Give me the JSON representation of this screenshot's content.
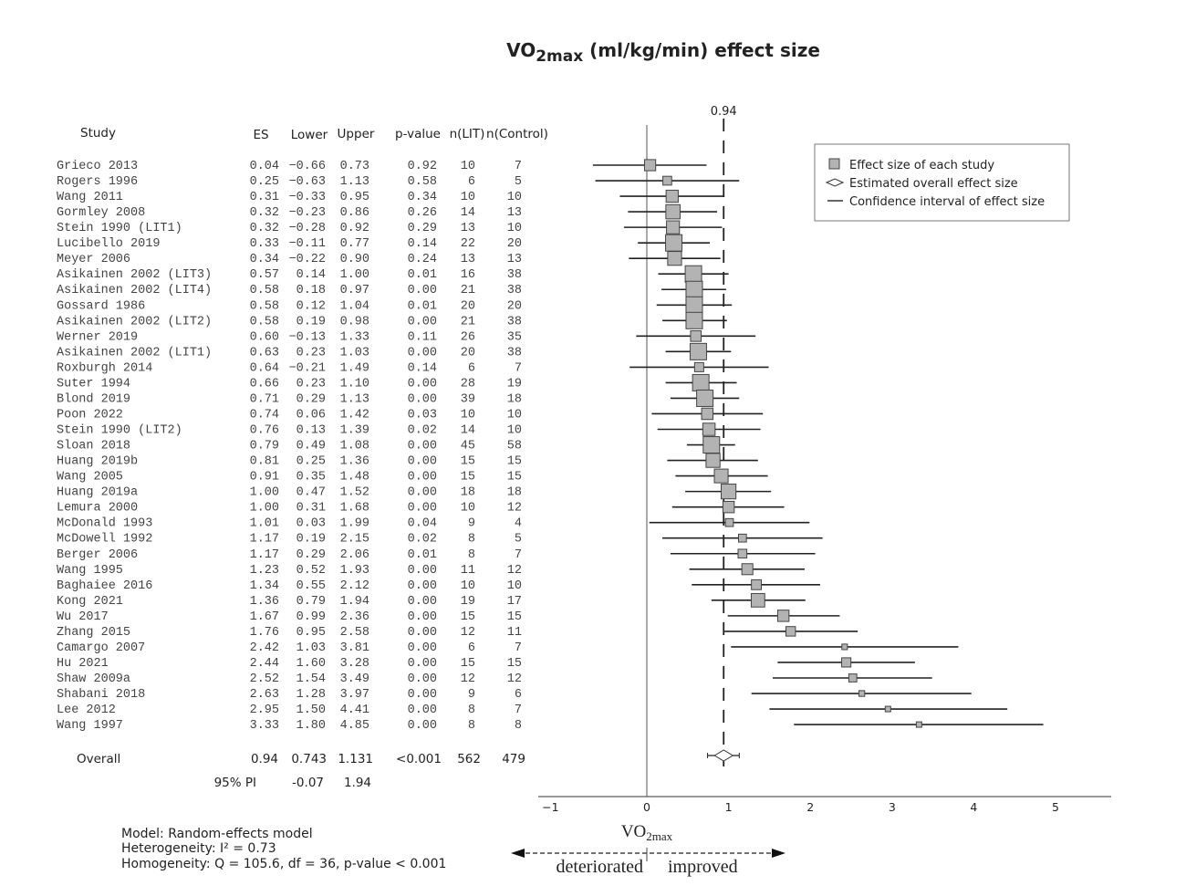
{
  "title": {
    "main": "VO",
    "sub": "2max",
    "rest": " (ml/kg/min) effect size"
  },
  "headers": {
    "study": "Study",
    "es": "ES",
    "lower": "Lower",
    "upper": "Upper",
    "p": "p-value",
    "n_lit": "n(LIT)",
    "n_control": "n(Control)"
  },
  "legend": {
    "square": "Effect size of each study",
    "diamond": "Estimated overall effect size",
    "line": "Confidence interval of effect size"
  },
  "footnote": {
    "model": "Model: Random-effects model",
    "heterogeneity": "Heterogeneity: I² = 0.73",
    "homogeneity": "Homogeneity: Q = 105.6, df = 36, p-value < 0.001"
  },
  "direction": {
    "label_main": "VO",
    "label_sub": "2max",
    "left": "deteriorated",
    "right": "improved"
  },
  "colors": {
    "square_fill": "#b3b3b3",
    "line": "#222222"
  },
  "chart_data": {
    "type": "forest",
    "xlim": [
      -1,
      5.7
    ],
    "xticks": [
      -1,
      0,
      1,
      2,
      3,
      4,
      5
    ],
    "reference_line": 0,
    "overall_line": 0.94,
    "overall_line_label": "0.94",
    "legend_position": "top-right",
    "studies": [
      {
        "name": "Grieco 2013",
        "es": 0.04,
        "lower": -0.66,
        "upper": 0.73,
        "p": "0.92",
        "n_lit": 10,
        "n_control": 7
      },
      {
        "name": "Rogers 1996",
        "es": 0.25,
        "lower": -0.63,
        "upper": 1.13,
        "p": "0.58",
        "n_lit": 6,
        "n_control": 5
      },
      {
        "name": "Wang 2011",
        "es": 0.31,
        "lower": -0.33,
        "upper": 0.95,
        "p": "0.34",
        "n_lit": 10,
        "n_control": 10
      },
      {
        "name": "Gormley 2008",
        "es": 0.32,
        "lower": -0.23,
        "upper": 0.86,
        "p": "0.26",
        "n_lit": 14,
        "n_control": 13
      },
      {
        "name": "Stein 1990 (LIT1)",
        "es": 0.32,
        "lower": -0.28,
        "upper": 0.92,
        "p": "0.29",
        "n_lit": 13,
        "n_control": 10
      },
      {
        "name": "Lucibello 2019",
        "es": 0.33,
        "lower": -0.11,
        "upper": 0.77,
        "p": "0.14",
        "n_lit": 22,
        "n_control": 20
      },
      {
        "name": "Meyer 2006",
        "es": 0.34,
        "lower": -0.22,
        "upper": 0.9,
        "p": "0.24",
        "n_lit": 13,
        "n_control": 13
      },
      {
        "name": "Asikainen 2002 (LIT3)",
        "es": 0.57,
        "lower": 0.14,
        "upper": 1.0,
        "p": "0.01",
        "n_lit": 16,
        "n_control": 38
      },
      {
        "name": "Asikainen 2002 (LIT4)",
        "es": 0.58,
        "lower": 0.18,
        "upper": 0.97,
        "p": "0.00",
        "n_lit": 21,
        "n_control": 38
      },
      {
        "name": "Gossard 1986",
        "es": 0.58,
        "lower": 0.12,
        "upper": 1.04,
        "p": "0.01",
        "n_lit": 20,
        "n_control": 20
      },
      {
        "name": "Asikainen 2002 (LIT2)",
        "es": 0.58,
        "lower": 0.19,
        "upper": 0.98,
        "p": "0.00",
        "n_lit": 21,
        "n_control": 38
      },
      {
        "name": "Werner 2019",
        "es": 0.6,
        "lower": -0.13,
        "upper": 1.33,
        "p": "0.11",
        "n_lit": 26,
        "n_control": 35
      },
      {
        "name": "Asikainen 2002 (LIT1)",
        "es": 0.63,
        "lower": 0.23,
        "upper": 1.03,
        "p": "0.00",
        "n_lit": 20,
        "n_control": 38
      },
      {
        "name": "Roxburgh 2014",
        "es": 0.64,
        "lower": -0.21,
        "upper": 1.49,
        "p": "0.14",
        "n_lit": 6,
        "n_control": 7
      },
      {
        "name": "Suter 1994",
        "es": 0.66,
        "lower": 0.23,
        "upper": 1.1,
        "p": "0.00",
        "n_lit": 28,
        "n_control": 19
      },
      {
        "name": "Blond 2019",
        "es": 0.71,
        "lower": 0.29,
        "upper": 1.13,
        "p": "0.00",
        "n_lit": 39,
        "n_control": 18
      },
      {
        "name": "Poon 2022",
        "es": 0.74,
        "lower": 0.06,
        "upper": 1.42,
        "p": "0.03",
        "n_lit": 10,
        "n_control": 10
      },
      {
        "name": "Stein 1990 (LIT2)",
        "es": 0.76,
        "lower": 0.13,
        "upper": 1.39,
        "p": "0.02",
        "n_lit": 14,
        "n_control": 10
      },
      {
        "name": "Sloan 2018",
        "es": 0.79,
        "lower": 0.49,
        "upper": 1.08,
        "p": "0.00",
        "n_lit": 45,
        "n_control": 58
      },
      {
        "name": "Huang 2019b",
        "es": 0.81,
        "lower": 0.25,
        "upper": 1.36,
        "p": "0.00",
        "n_lit": 15,
        "n_control": 15
      },
      {
        "name": "Wang 2005",
        "es": 0.91,
        "lower": 0.35,
        "upper": 1.48,
        "p": "0.00",
        "n_lit": 15,
        "n_control": 15
      },
      {
        "name": "Huang 2019a",
        "es": 1.0,
        "lower": 0.47,
        "upper": 1.52,
        "p": "0.00",
        "n_lit": 18,
        "n_control": 18
      },
      {
        "name": "Lemura 2000",
        "es": 1.0,
        "lower": 0.31,
        "upper": 1.68,
        "p": "0.00",
        "n_lit": 10,
        "n_control": 12
      },
      {
        "name": "McDonald 1993",
        "es": 1.01,
        "lower": 0.03,
        "upper": 1.99,
        "p": "0.04",
        "n_lit": 9,
        "n_control": 4
      },
      {
        "name": "McDowell 1992",
        "es": 1.17,
        "lower": 0.19,
        "upper": 2.15,
        "p": "0.02",
        "n_lit": 8,
        "n_control": 5
      },
      {
        "name": "Berger 2006",
        "es": 1.17,
        "lower": 0.29,
        "upper": 2.06,
        "p": "0.01",
        "n_lit": 8,
        "n_control": 7
      },
      {
        "name": "Wang 1995",
        "es": 1.23,
        "lower": 0.52,
        "upper": 1.93,
        "p": "0.00",
        "n_lit": 11,
        "n_control": 12
      },
      {
        "name": "Baghaiee 2016",
        "es": 1.34,
        "lower": 0.55,
        "upper": 2.12,
        "p": "0.00",
        "n_lit": 10,
        "n_control": 10
      },
      {
        "name": "Kong 2021",
        "es": 1.36,
        "lower": 0.79,
        "upper": 1.94,
        "p": "0.00",
        "n_lit": 19,
        "n_control": 17
      },
      {
        "name": "Wu 2017",
        "es": 1.67,
        "lower": 0.99,
        "upper": 2.36,
        "p": "0.00",
        "n_lit": 15,
        "n_control": 15
      },
      {
        "name": "Zhang 2015",
        "es": 1.76,
        "lower": 0.95,
        "upper": 2.58,
        "p": "0.00",
        "n_lit": 12,
        "n_control": 11
      },
      {
        "name": "Camargo 2007",
        "es": 2.42,
        "lower": 1.03,
        "upper": 3.81,
        "p": "0.00",
        "n_lit": 6,
        "n_control": 7
      },
      {
        "name": "Hu 2021",
        "es": 2.44,
        "lower": 1.6,
        "upper": 3.28,
        "p": "0.00",
        "n_lit": 15,
        "n_control": 15
      },
      {
        "name": "Shaw 2009a",
        "es": 2.52,
        "lower": 1.54,
        "upper": 3.49,
        "p": "0.00",
        "n_lit": 12,
        "n_control": 12
      },
      {
        "name": "Shabani 2018",
        "es": 2.63,
        "lower": 1.28,
        "upper": 3.97,
        "p": "0.00",
        "n_lit": 9,
        "n_control": 6
      },
      {
        "name": "Lee 2012",
        "es": 2.95,
        "lower": 1.5,
        "upper": 4.41,
        "p": "0.00",
        "n_lit": 8,
        "n_control": 7
      },
      {
        "name": "Wang 1997",
        "es": 3.33,
        "lower": 1.8,
        "upper": 4.85,
        "p": "0.00",
        "n_lit": 8,
        "n_control": 8
      }
    ],
    "overall": {
      "label": "Overall",
      "es": "0.94",
      "lower": "0.743",
      "upper": "1.131",
      "p": "<0.001",
      "n_lit": "562",
      "n_control": "479"
    },
    "prediction_interval": {
      "label": "95% PI",
      "lower": "-0.07",
      "upper": "1.94"
    }
  }
}
